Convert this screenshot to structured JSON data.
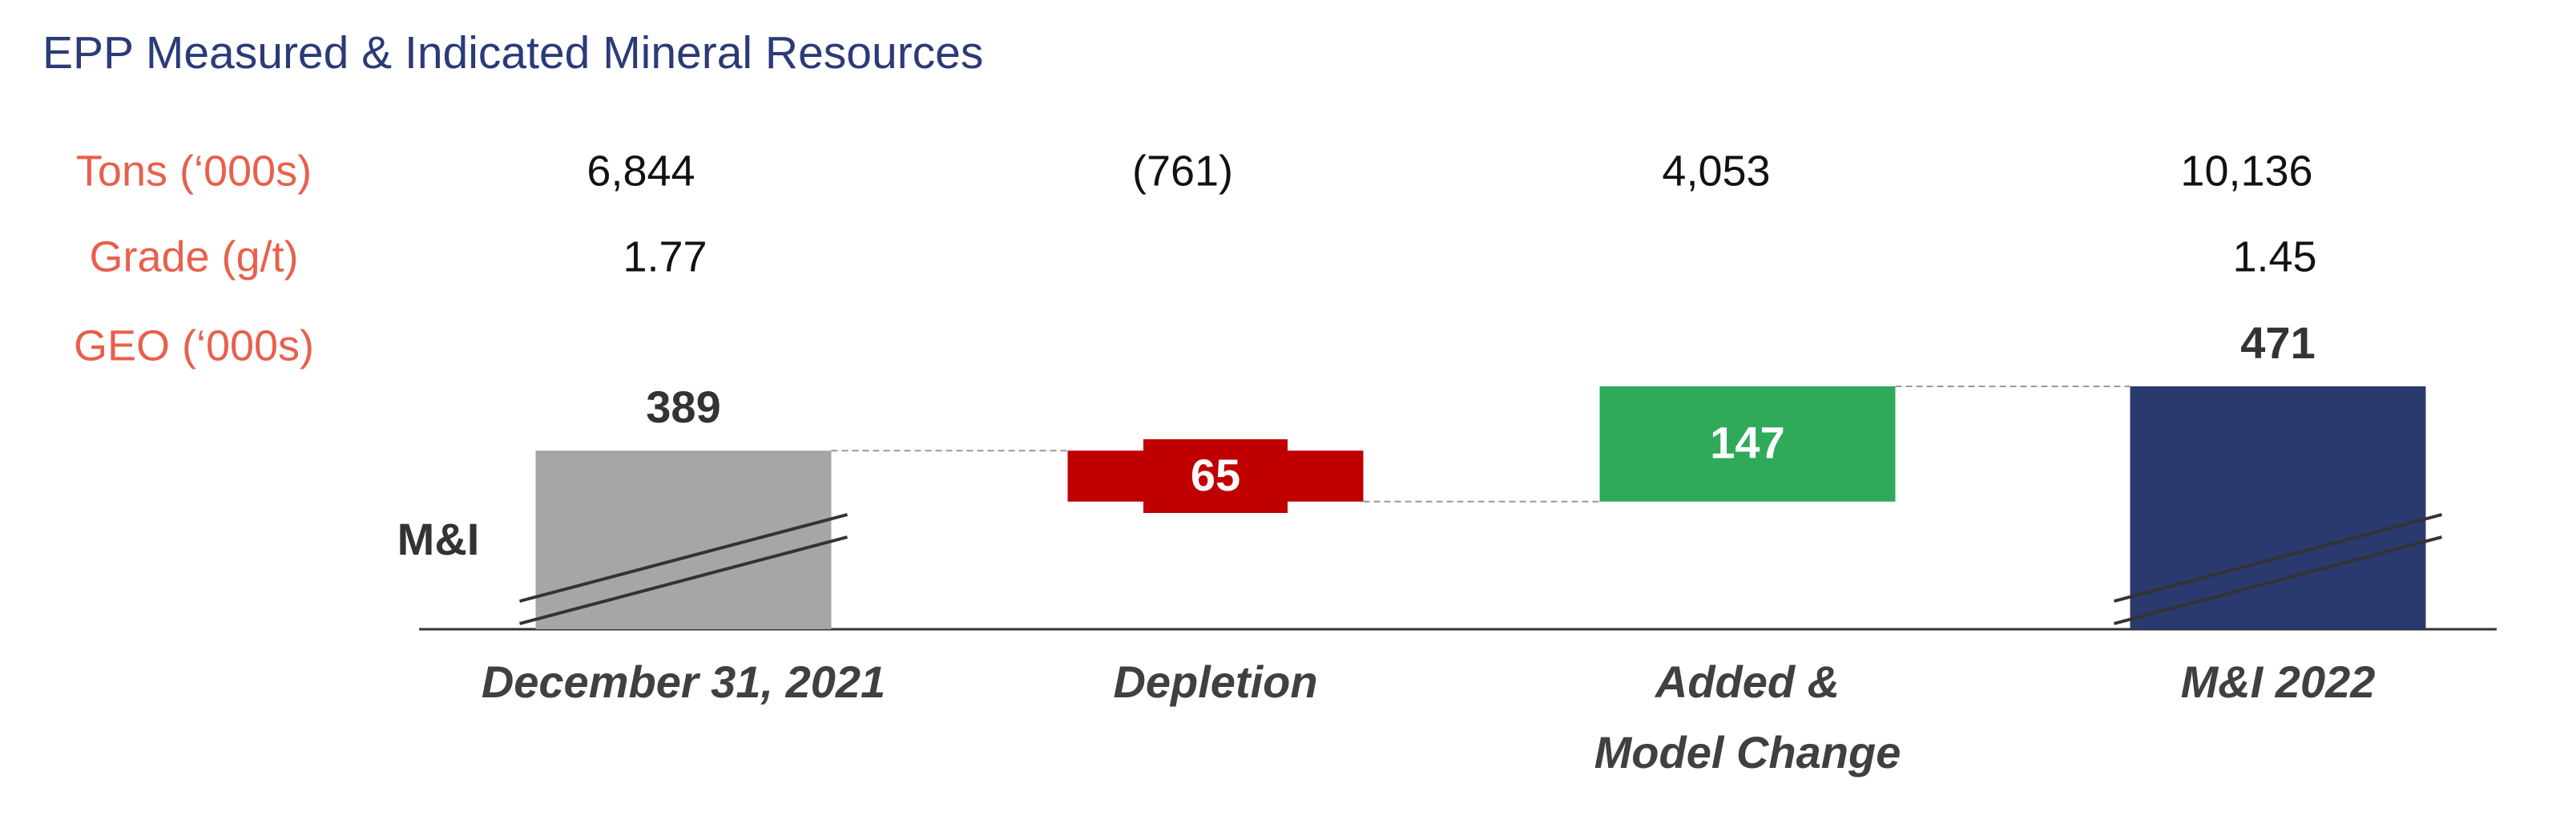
{
  "chart_data": {
    "type": "waterfall",
    "title": "EPP Measured & Indicated Mineral Resources",
    "categories": [
      "December 31, 2021",
      "Depletion",
      "Added &\nModel Change",
      "M&I 2022"
    ],
    "values": [
      389,
      -65,
      147,
      471
    ],
    "value_labels": [
      "389",
      "65",
      "147",
      "471"
    ],
    "colors": [
      "#a6a6a6",
      "#c00000",
      "#2eaa59",
      "#2b3a6e"
    ],
    "axis_label": "M&I",
    "table": {
      "row_labels": [
        "Tons (‘000s)",
        "Grade (g/t)",
        "GEO (‘000s)"
      ],
      "rows": [
        [
          "6,844",
          "(761)",
          "4,053",
          "10,136"
        ],
        [
          "1.77",
          null,
          null,
          "1.45"
        ]
      ]
    }
  }
}
